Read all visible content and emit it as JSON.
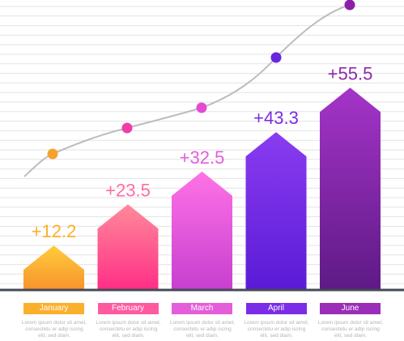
{
  "chart_data": {
    "type": "bar",
    "categories": [
      "January",
      "February",
      "March",
      "April",
      "June"
    ],
    "values": [
      12.2,
      23.5,
      32.5,
      43.3,
      55.5
    ],
    "value_labels": [
      "+12.2",
      "+23.5",
      "+32.5",
      "+43.3",
      "+55.5"
    ],
    "title": "",
    "xlabel": "",
    "ylabel": "",
    "ylim": [
      0,
      70
    ],
    "grid": true,
    "bar_shape": "arrow",
    "trend_line": true,
    "colors": [
      {
        "top": "#ffcc3a",
        "bottom": "#f7932e",
        "tag": "#fbb02c",
        "label": "#fbb02c",
        "dot": "#f7a12e"
      },
      {
        "top": "#ff8a9b",
        "bottom": "#ff2e86",
        "tag": "#ff5aa0",
        "label": "#ff6ba6",
        "dot": "#ef3ea8"
      },
      {
        "top": "#ff73e6",
        "bottom": "#c63fcf",
        "tag": "#e45ed9",
        "label": "#e45ed9",
        "dot": "#e44bd2"
      },
      {
        "top": "#8a3cf0",
        "bottom": "#5a1bd6",
        "tag": "#7b2ce6",
        "label": "#7b2ce6",
        "dot": "#6a26dc"
      },
      {
        "top": "#a534c8",
        "bottom": "#5e1a86",
        "tag": "#9b2db8",
        "label": "#8e2aaa",
        "dot": "#8a1fa8"
      }
    ],
    "line_color": "#bdbdbd",
    "axis_color": "#444a54",
    "grid_color": "#e3e3e3"
  },
  "captions": [
    "Lorem ipsum dolor sit amet, consectetu er adip iscing elit, sed diam.",
    "Lorem ipsum dolor sit amet, consectetu er adip iscing elit, sed diam.",
    "Lorem ipsum dolor sit amet, consectetu er adip iscing elit, sed diam.",
    "Lorem ipsum dolor sit amet, consectetu er adip iscing elit, sed diam.",
    "Lorem ipsum dolor sit amet, consectetu er adip iscing elit, sed diam."
  ]
}
